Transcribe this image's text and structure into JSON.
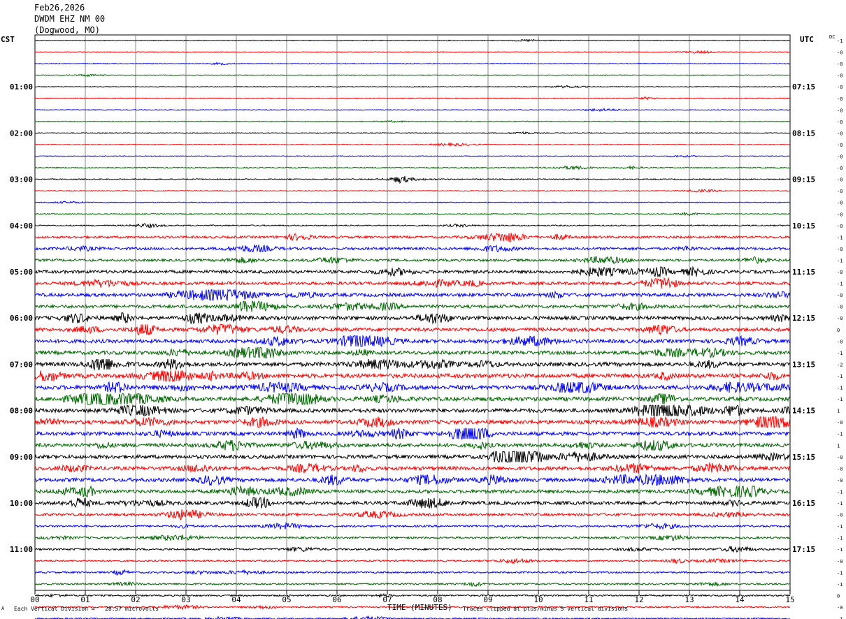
{
  "header": {
    "date": "Feb26,2026",
    "station": "DWDM EHZ NM 00",
    "location": "(Dogwood, MO)"
  },
  "left_tz": "CST",
  "right_tz": "UTC",
  "dc_label": "DC",
  "footer": {
    "scale_note": "Each Vertical Division =   28.57 microvolts",
    "clip_note": "Traces clipped at plus/minus 5 vertical divisions",
    "corner_mark": "A"
  },
  "chart_data": {
    "type": "line",
    "xlabel": "TIME (MINUTES)",
    "x_ticks": [
      "00",
      "01",
      "02",
      "03",
      "04",
      "05",
      "06",
      "07",
      "08",
      "09",
      "10",
      "11",
      "12",
      "13",
      "14",
      "15"
    ],
    "xlim": [
      0,
      15
    ],
    "grid": true,
    "trace_colors": [
      "#000000",
      "#ff0000",
      "#0000ff",
      "#006600"
    ],
    "left_hour_labels": [
      "01:00",
      "02:00",
      "03:00",
      "04:00",
      "05:00",
      "06:00",
      "07:00",
      "08:00",
      "09:00",
      "10:00",
      "11:00"
    ],
    "right_hour_labels": [
      "07:15",
      "08:15",
      "09:15",
      "10:15",
      "11:15",
      "12:15",
      "13:15",
      "14:15",
      "15:15",
      "16:15",
      "17:15"
    ],
    "dc_offsets": [
      "-1",
      "-0",
      "-0",
      "-0",
      "-0",
      "-0",
      "-0",
      "-0",
      "-0",
      "-0",
      "-0",
      "-0",
      "-0",
      "-0",
      "-0",
      "-0",
      "-0",
      "-1",
      "-0",
      "-1",
      "-0",
      "-1",
      "-0",
      "-0",
      "-0",
      "0",
      "-0",
      "-1",
      "-2",
      "-1",
      "-1",
      "-1",
      "1",
      "-0",
      "-1",
      "1",
      "-0",
      "-0",
      "-0",
      "-1",
      "-1",
      "-0",
      "-1",
      "-1",
      "-1",
      "-0",
      "-1",
      "-1",
      "0",
      "-0",
      "-1"
    ],
    "trace_activity": [
      0.6,
      0.6,
      0.6,
      0.6,
      0.6,
      0.6,
      0.6,
      0.6,
      0.6,
      0.6,
      0.6,
      0.8,
      0.8,
      0.6,
      0.6,
      0.7,
      0.9,
      1.6,
      1.8,
      1.7,
      2.2,
      2.2,
      2.4,
      2.3,
      2.6,
      2.6,
      2.6,
      2.6,
      2.8,
      3.0,
      3.0,
      2.8,
      2.8,
      2.8,
      2.6,
      2.6,
      2.6,
      2.6,
      2.6,
      2.4,
      2.4,
      1.8,
      1.4,
      1.4,
      1.3,
      1.2,
      1.2,
      1.2,
      1.1,
      1.1,
      1.1
    ]
  }
}
